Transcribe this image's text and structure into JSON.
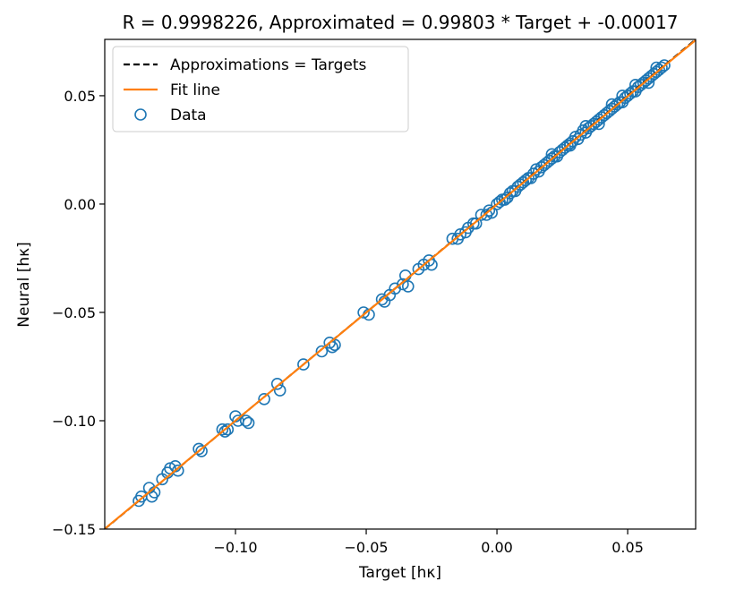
{
  "chart_data": {
    "type": "scatter",
    "title": "R = 0.9998226, Approximated = 0.99803 * Target + -0.00017",
    "xlabel": "Target [hκ]",
    "ylabel": "Neural [hκ]",
    "xlim": [
      -0.15,
      0.076
    ],
    "ylim": [
      -0.15,
      0.076
    ],
    "xticks": [
      -0.1,
      -0.05,
      0.0,
      0.05
    ],
    "yticks": [
      -0.15,
      -0.1,
      -0.05,
      0.0,
      0.05
    ],
    "xtick_labels": [
      "−0.10",
      "−0.05",
      "0.00",
      "0.05"
    ],
    "ytick_labels": [
      "−0.15",
      "−0.10",
      "−0.05",
      "0.00",
      "0.05"
    ],
    "grid": false,
    "legend": {
      "position": "top-left",
      "entries": [
        {
          "label": "Approximations = Targets",
          "style": "dashed-line",
          "color": "#000000"
        },
        {
          "label": "Fit line",
          "style": "line",
          "color": "#ff7f0e"
        },
        {
          "label": "Data",
          "style": "hollow-circle",
          "color": "#1f77b4"
        }
      ]
    },
    "fit": {
      "slope": 0.99803,
      "intercept": -0.00017,
      "color": "#ff7f0e"
    },
    "identity_line_color": "#000000",
    "series": [
      {
        "name": "Data",
        "color": "#1f77b4",
        "points": [
          [
            -0.137,
            -0.137
          ],
          [
            -0.136,
            -0.135
          ],
          [
            -0.133,
            -0.131
          ],
          [
            -0.132,
            -0.135
          ],
          [
            -0.131,
            -0.133
          ],
          [
            -0.128,
            -0.127
          ],
          [
            -0.126,
            -0.124
          ],
          [
            -0.125,
            -0.122
          ],
          [
            -0.123,
            -0.121
          ],
          [
            -0.122,
            -0.123
          ],
          [
            -0.114,
            -0.113
          ],
          [
            -0.113,
            -0.114
          ],
          [
            -0.105,
            -0.104
          ],
          [
            -0.104,
            -0.105
          ],
          [
            -0.103,
            -0.104
          ],
          [
            -0.1,
            -0.098
          ],
          [
            -0.099,
            -0.1
          ],
          [
            -0.096,
            -0.1
          ],
          [
            -0.095,
            -0.101
          ],
          [
            -0.089,
            -0.09
          ],
          [
            -0.084,
            -0.083
          ],
          [
            -0.083,
            -0.086
          ],
          [
            -0.074,
            -0.074
          ],
          [
            -0.067,
            -0.068
          ],
          [
            -0.064,
            -0.064
          ],
          [
            -0.063,
            -0.066
          ],
          [
            -0.062,
            -0.065
          ],
          [
            -0.051,
            -0.05
          ],
          [
            -0.049,
            -0.051
          ],
          [
            -0.044,
            -0.044
          ],
          [
            -0.043,
            -0.045
          ],
          [
            -0.041,
            -0.042
          ],
          [
            -0.039,
            -0.039
          ],
          [
            -0.036,
            -0.037
          ],
          [
            -0.035,
            -0.033
          ],
          [
            -0.034,
            -0.038
          ],
          [
            -0.03,
            -0.03
          ],
          [
            -0.028,
            -0.028
          ],
          [
            -0.026,
            -0.026
          ],
          [
            -0.025,
            -0.028
          ],
          [
            -0.017,
            -0.016
          ],
          [
            -0.015,
            -0.016
          ],
          [
            -0.014,
            -0.014
          ],
          [
            -0.012,
            -0.013
          ],
          [
            -0.011,
            -0.011
          ],
          [
            -0.009,
            -0.009
          ],
          [
            -0.008,
            -0.009
          ],
          [
            -0.006,
            -0.005
          ],
          [
            -0.004,
            -0.005
          ],
          [
            -0.003,
            -0.003
          ],
          [
            -0.002,
            -0.004
          ],
          [
            0.0,
            0.0
          ],
          [
            0.001,
            0.001
          ],
          [
            0.002,
            0.002
          ],
          [
            0.003,
            0.002
          ],
          [
            0.004,
            0.003
          ],
          [
            0.005,
            0.005
          ],
          [
            0.006,
            0.006
          ],
          [
            0.007,
            0.006
          ],
          [
            0.008,
            0.008
          ],
          [
            0.009,
            0.009
          ],
          [
            0.01,
            0.01
          ],
          [
            0.011,
            0.011
          ],
          [
            0.012,
            0.012
          ],
          [
            0.013,
            0.012
          ],
          [
            0.014,
            0.014
          ],
          [
            0.015,
            0.016
          ],
          [
            0.016,
            0.015
          ],
          [
            0.017,
            0.017
          ],
          [
            0.018,
            0.018
          ],
          [
            0.019,
            0.019
          ],
          [
            0.02,
            0.02
          ],
          [
            0.021,
            0.021
          ],
          [
            0.022,
            0.022
          ],
          [
            0.023,
            0.022
          ],
          [
            0.024,
            0.024
          ],
          [
            0.025,
            0.025
          ],
          [
            0.026,
            0.026
          ],
          [
            0.027,
            0.027
          ],
          [
            0.028,
            0.028
          ],
          [
            0.029,
            0.029
          ],
          [
            0.03,
            0.031
          ],
          [
            0.031,
            0.03
          ],
          [
            0.032,
            0.032
          ],
          [
            0.033,
            0.034
          ],
          [
            0.034,
            0.033
          ],
          [
            0.035,
            0.035
          ],
          [
            0.036,
            0.036
          ],
          [
            0.037,
            0.037
          ],
          [
            0.038,
            0.038
          ],
          [
            0.039,
            0.039
          ],
          [
            0.04,
            0.04
          ],
          [
            0.041,
            0.041
          ],
          [
            0.042,
            0.042
          ],
          [
            0.043,
            0.043
          ],
          [
            0.044,
            0.044
          ],
          [
            0.045,
            0.045
          ],
          [
            0.046,
            0.046
          ],
          [
            0.047,
            0.047
          ],
          [
            0.048,
            0.047
          ],
          [
            0.049,
            0.049
          ],
          [
            0.05,
            0.05
          ],
          [
            0.051,
            0.051
          ],
          [
            0.052,
            0.052
          ],
          [
            0.053,
            0.052
          ],
          [
            0.054,
            0.054
          ],
          [
            0.055,
            0.055
          ],
          [
            0.056,
            0.056
          ],
          [
            0.057,
            0.057
          ],
          [
            0.058,
            0.058
          ],
          [
            0.059,
            0.059
          ],
          [
            0.06,
            0.06
          ],
          [
            0.061,
            0.061
          ],
          [
            0.062,
            0.062
          ],
          [
            0.063,
            0.063
          ],
          [
            0.064,
            0.064
          ],
          [
            0.021,
            0.023
          ],
          [
            0.028,
            0.027
          ],
          [
            0.034,
            0.036
          ],
          [
            0.039,
            0.037
          ],
          [
            0.044,
            0.046
          ],
          [
            0.048,
            0.05
          ],
          [
            0.053,
            0.055
          ],
          [
            0.058,
            0.056
          ],
          [
            0.061,
            0.063
          ]
        ]
      }
    ]
  }
}
